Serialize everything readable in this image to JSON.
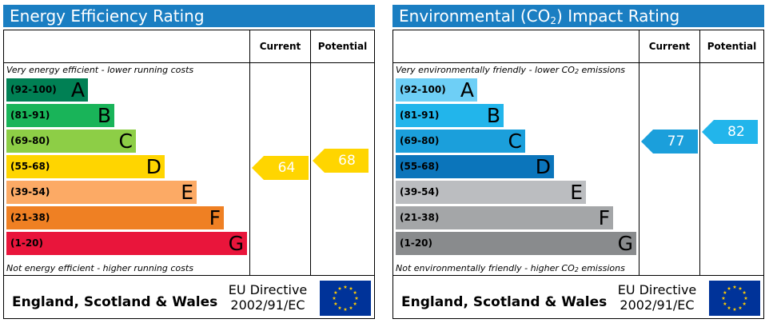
{
  "panels": [
    {
      "title": "Energy Efficiency Rating",
      "header": {
        "current": "Current",
        "potential": "Potential"
      },
      "top_note": "Very energy efficient - lower running costs",
      "bottom_note": "Not energy efficient - higher running costs",
      "footer": {
        "region": "England, Scotland & Wales",
        "directive_line1": "EU Directive",
        "directive_line2": "2002/91/EC"
      },
      "eu_flag_icon": "eu-flag-icon"
    },
    {
      "title_pre": "Environmental (CO",
      "title_sub": "2",
      "title_post": ") Impact Rating",
      "header": {
        "current": "Current",
        "potential": "Potential"
      },
      "top_note_pre": "Very environmentally friendly - lower CO",
      "top_note_sub": "2",
      "top_note_post": " emissions",
      "bottom_note_pre": "Not environmentally friendly - higher CO",
      "bottom_note_sub": "2",
      "bottom_note_post": " emissions",
      "footer": {
        "region": "England, Scotland & Wales",
        "directive_line1": "EU Directive",
        "directive_line2": "2002/91/EC"
      },
      "eu_flag_icon": "eu-flag-icon"
    }
  ],
  "chart_data": [
    {
      "type": "bar",
      "title": "Energy Efficiency Rating",
      "categories": [
        "(92-100) A",
        "(81-91) B",
        "(69-80) C",
        "(55-68) D",
        "(39-54) E",
        "(21-38) F",
        "(1-20) G"
      ],
      "bands": [
        {
          "range": "(92-100)",
          "letter": "A",
          "color": "#008054"
        },
        {
          "range": "(81-91)",
          "letter": "B",
          "color": "#19b459"
        },
        {
          "range": "(69-80)",
          "letter": "C",
          "color": "#8dce46"
        },
        {
          "range": "(55-68)",
          "letter": "D",
          "color": "#ffd500"
        },
        {
          "range": "(39-54)",
          "letter": "E",
          "color": "#fcaa65"
        },
        {
          "range": "(21-38)",
          "letter": "F",
          "color": "#ef8023"
        },
        {
          "range": "(1-20)",
          "letter": "G",
          "color": "#e9153b"
        }
      ],
      "current": {
        "value": 64,
        "color": "#ffd500"
      },
      "potential": {
        "value": 68,
        "color": "#ffd500"
      }
    },
    {
      "type": "bar",
      "title": "Environmental (CO2) Impact Rating",
      "categories": [
        "(92-100) A",
        "(81-91) B",
        "(69-80) C",
        "(55-68) D",
        "(39-54) E",
        "(21-38) F",
        "(1-20) G"
      ],
      "bands": [
        {
          "range": "(92-100)",
          "letter": "A",
          "color": "#6ecff6"
        },
        {
          "range": "(81-91)",
          "letter": "B",
          "color": "#22b5eb"
        },
        {
          "range": "(69-80)",
          "letter": "C",
          "color": "#1b9fdb"
        },
        {
          "range": "(55-68)",
          "letter": "D",
          "color": "#0b75bb"
        },
        {
          "range": "(39-54)",
          "letter": "E",
          "color": "#bbbdc0"
        },
        {
          "range": "(21-38)",
          "letter": "F",
          "color": "#a4a6a8"
        },
        {
          "range": "(1-20)",
          "letter": "G",
          "color": "#898b8d"
        }
      ],
      "current": {
        "value": 77,
        "color": "#1b9fdb"
      },
      "potential": {
        "value": 82,
        "color": "#22b5eb"
      }
    }
  ]
}
